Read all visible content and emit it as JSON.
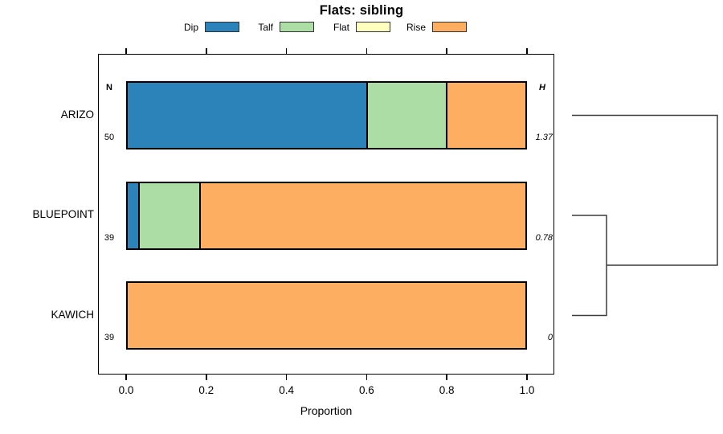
{
  "chart_data": {
    "type": "bar",
    "orientation": "horizontal",
    "stacked": true,
    "proportional": true,
    "title": "Flats: sibling",
    "xlabel": "Proportion",
    "xlim": [
      0,
      1
    ],
    "x_ticks": [
      0,
      0.2,
      0.4,
      0.6,
      0.8,
      1.0
    ],
    "x_tick_labels": [
      "0.0",
      "0.2",
      "0.4",
      "0.6",
      "0.8",
      "1.0"
    ],
    "legend_position": "top",
    "grid": false,
    "categories": [
      "ARIZO",
      "BLUEPOINT",
      "KAWICH"
    ],
    "series": [
      {
        "name": "Dip",
        "color": "#2B83BA",
        "values": [
          0.6,
          0.026,
          0
        ]
      },
      {
        "name": "Talf",
        "color": "#ABDDA4",
        "values": [
          0.2,
          0.154,
          0
        ]
      },
      {
        "name": "Flat",
        "color": "#FFFFBF",
        "values": [
          0,
          0,
          0
        ]
      },
      {
        "name": "Rise",
        "color": "#FDAE61",
        "values": [
          0.2,
          0.82,
          1.0
        ]
      }
    ],
    "sample_sizes": {
      "header": "N",
      "values": [
        "50",
        "39",
        "39"
      ]
    },
    "heterogeneity": {
      "header": "H",
      "values": [
        "1.37",
        "0.78",
        "0"
      ]
    },
    "dendrogram": {
      "first_join": [
        "BLUEPOINT",
        "KAWICH"
      ],
      "second_join": [
        "ARIZO",
        "(BLUEPOINT,KAWICH)"
      ]
    }
  }
}
